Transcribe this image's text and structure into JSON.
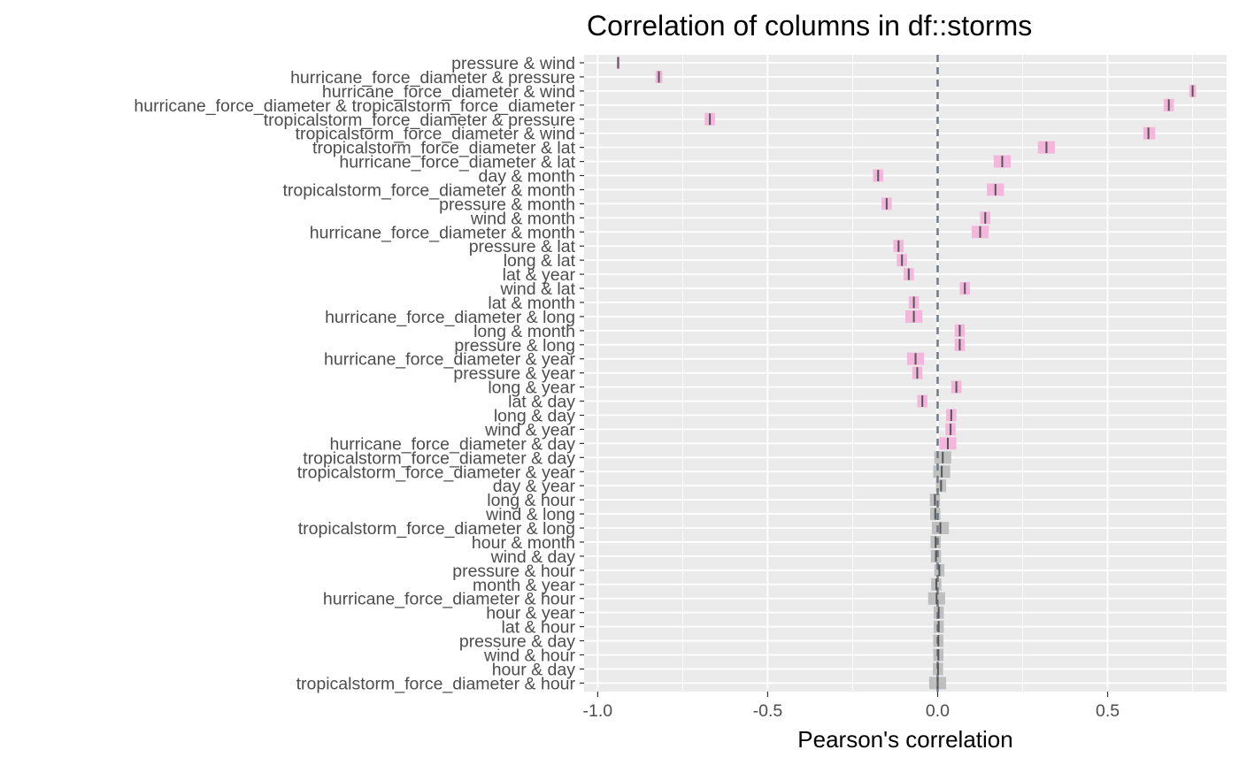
{
  "chart_data": {
    "type": "interval",
    "title": "Correlation of columns in df::storms",
    "xlabel": "Pearson's correlation",
    "ylabel": "",
    "xlim": [
      -1.04,
      0.85
    ],
    "x_ticks": [
      {
        "value": -1.0,
        "label": "-1.0"
      },
      {
        "value": -0.5,
        "label": "-0.5"
      },
      {
        "value": 0.0,
        "label": "0.0"
      },
      {
        "value": 0.5,
        "label": "0.5"
      }
    ],
    "reference_line": 0,
    "grid": true,
    "colors": {
      "panel_background": "#ebebeb",
      "gridline": "#ffffff",
      "significant_band": "#f4b6dc",
      "nonsignificant_band": "#bfbfbf",
      "estimate_mark": "#555555",
      "reference_line": "#6b7685"
    },
    "rows": [
      {
        "label": "pressure & wind",
        "estimate": -0.94,
        "low": -0.943,
        "high": -0.937,
        "significant": true
      },
      {
        "label": "hurricane_force_diameter & pressure",
        "estimate": -0.82,
        "low": -0.83,
        "high": -0.81,
        "significant": true
      },
      {
        "label": "hurricane_force_diameter & wind",
        "estimate": 0.75,
        "low": 0.74,
        "high": 0.76,
        "significant": true
      },
      {
        "label": "hurricane_force_diameter & tropicalstorm_force_diameter",
        "estimate": 0.68,
        "low": 0.665,
        "high": 0.695,
        "significant": true
      },
      {
        "label": "tropicalstorm_force_diameter & pressure",
        "estimate": -0.67,
        "low": -0.685,
        "high": -0.655,
        "significant": true
      },
      {
        "label": "tropicalstorm_force_diameter & wind",
        "estimate": 0.62,
        "low": 0.605,
        "high": 0.64,
        "significant": true
      },
      {
        "label": "tropicalstorm_force_diameter & lat",
        "estimate": 0.32,
        "low": 0.295,
        "high": 0.345,
        "significant": true
      },
      {
        "label": "hurricane_force_diameter & lat",
        "estimate": 0.19,
        "low": 0.165,
        "high": 0.215,
        "significant": true
      },
      {
        "label": "day & month",
        "estimate": -0.175,
        "low": -0.19,
        "high": -0.16,
        "significant": true
      },
      {
        "label": "tropicalstorm_force_diameter & month",
        "estimate": 0.17,
        "low": 0.145,
        "high": 0.195,
        "significant": true
      },
      {
        "label": "pressure & month",
        "estimate": -0.15,
        "low": -0.165,
        "high": -0.135,
        "significant": true
      },
      {
        "label": "wind & month",
        "estimate": 0.14,
        "low": 0.125,
        "high": 0.155,
        "significant": true
      },
      {
        "label": "hurricane_force_diameter & month",
        "estimate": 0.125,
        "low": 0.1,
        "high": 0.15,
        "significant": true
      },
      {
        "label": "pressure & lat",
        "estimate": -0.115,
        "low": -0.13,
        "high": -0.1,
        "significant": true
      },
      {
        "label": "long & lat",
        "estimate": -0.105,
        "low": -0.12,
        "high": -0.09,
        "significant": true
      },
      {
        "label": "lat & year",
        "estimate": -0.085,
        "low": -0.1,
        "high": -0.07,
        "significant": true
      },
      {
        "label": "wind & lat",
        "estimate": 0.08,
        "low": 0.065,
        "high": 0.095,
        "significant": true
      },
      {
        "label": "lat & month",
        "estimate": -0.07,
        "low": -0.085,
        "high": -0.055,
        "significant": true
      },
      {
        "label": "hurricane_force_diameter & long",
        "estimate": -0.07,
        "low": -0.095,
        "high": -0.045,
        "significant": true
      },
      {
        "label": "long & month",
        "estimate": 0.065,
        "low": 0.05,
        "high": 0.08,
        "significant": true
      },
      {
        "label": "pressure & long",
        "estimate": 0.065,
        "low": 0.05,
        "high": 0.08,
        "significant": true
      },
      {
        "label": "hurricane_force_diameter & year",
        "estimate": -0.065,
        "low": -0.09,
        "high": -0.04,
        "significant": true
      },
      {
        "label": "pressure & year",
        "estimate": -0.06,
        "low": -0.075,
        "high": -0.045,
        "significant": true
      },
      {
        "label": "long & year",
        "estimate": 0.055,
        "low": 0.04,
        "high": 0.07,
        "significant": true
      },
      {
        "label": "lat & day",
        "estimate": -0.045,
        "low": -0.06,
        "high": -0.03,
        "significant": true
      },
      {
        "label": "long & day",
        "estimate": 0.04,
        "low": 0.025,
        "high": 0.055,
        "significant": true
      },
      {
        "label": "wind & year",
        "estimate": 0.038,
        "low": 0.023,
        "high": 0.053,
        "significant": true
      },
      {
        "label": "hurricane_force_diameter & day",
        "estimate": 0.03,
        "low": 0.005,
        "high": 0.055,
        "significant": true
      },
      {
        "label": "tropicalstorm_force_diameter & day",
        "estimate": 0.015,
        "low": -0.01,
        "high": 0.04,
        "significant": false
      },
      {
        "label": "tropicalstorm_force_diameter & year",
        "estimate": 0.012,
        "low": -0.013,
        "high": 0.037,
        "significant": false
      },
      {
        "label": "day & year",
        "estimate": 0.01,
        "low": -0.005,
        "high": 0.025,
        "significant": false
      },
      {
        "label": "long & hour",
        "estimate": -0.008,
        "low": -0.023,
        "high": 0.007,
        "significant": false
      },
      {
        "label": "wind & long",
        "estimate": -0.007,
        "low": -0.022,
        "high": 0.008,
        "significant": false
      },
      {
        "label": "tropicalstorm_force_diameter & long",
        "estimate": 0.008,
        "low": -0.017,
        "high": 0.033,
        "significant": false
      },
      {
        "label": "hour & month",
        "estimate": -0.006,
        "low": -0.021,
        "high": 0.009,
        "significant": false
      },
      {
        "label": "wind & day",
        "estimate": -0.005,
        "low": -0.02,
        "high": 0.01,
        "significant": false
      },
      {
        "label": "pressure & hour",
        "estimate": 0.005,
        "low": -0.01,
        "high": 0.02,
        "significant": false
      },
      {
        "label": "month & year",
        "estimate": -0.004,
        "low": -0.019,
        "high": 0.011,
        "significant": false
      },
      {
        "label": "hurricane_force_diameter & hour",
        "estimate": -0.003,
        "low": -0.028,
        "high": 0.022,
        "significant": false
      },
      {
        "label": "hour & year",
        "estimate": 0.003,
        "low": -0.012,
        "high": 0.018,
        "significant": false
      },
      {
        "label": "lat & hour",
        "estimate": 0.003,
        "low": -0.012,
        "high": 0.018,
        "significant": false
      },
      {
        "label": "pressure & day",
        "estimate": 0.002,
        "low": -0.013,
        "high": 0.017,
        "significant": false
      },
      {
        "label": "wind & hour",
        "estimate": 0.002,
        "low": -0.013,
        "high": 0.017,
        "significant": false
      },
      {
        "label": "hour & day",
        "estimate": 0.001,
        "low": -0.014,
        "high": 0.016,
        "significant": false
      },
      {
        "label": "tropicalstorm_force_diameter & hour",
        "estimate": 0.0,
        "low": -0.025,
        "high": 0.025,
        "significant": false
      }
    ]
  }
}
